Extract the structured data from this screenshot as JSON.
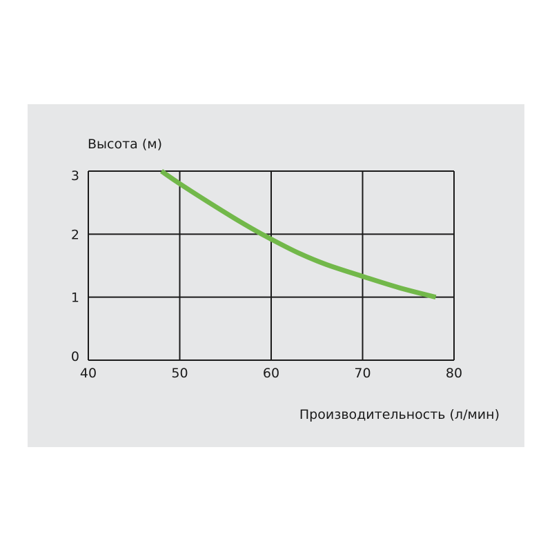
{
  "chart_data": {
    "type": "line",
    "title": "",
    "ylabel": "Высота (м)",
    "xlabel": "Производительность (л/мин)",
    "xlim": [
      40,
      80
    ],
    "ylim": [
      0,
      3
    ],
    "x_ticks": [
      "40",
      "50",
      "60",
      "70",
      "80"
    ],
    "y_ticks": [
      "0",
      "1",
      "2",
      "3"
    ],
    "x_tick_values": [
      40,
      50,
      60,
      70,
      80
    ],
    "y_tick_values": [
      0,
      1,
      2,
      3
    ],
    "grid": true,
    "series": [
      {
        "color": "#72b84a",
        "x": [
          48,
          50,
          53,
          56,
          58,
          60,
          63,
          66,
          70,
          74,
          78
        ],
        "y": [
          3.0,
          2.8,
          2.52,
          2.25,
          2.08,
          1.92,
          1.7,
          1.52,
          1.33,
          1.15,
          1.0
        ]
      }
    ]
  }
}
